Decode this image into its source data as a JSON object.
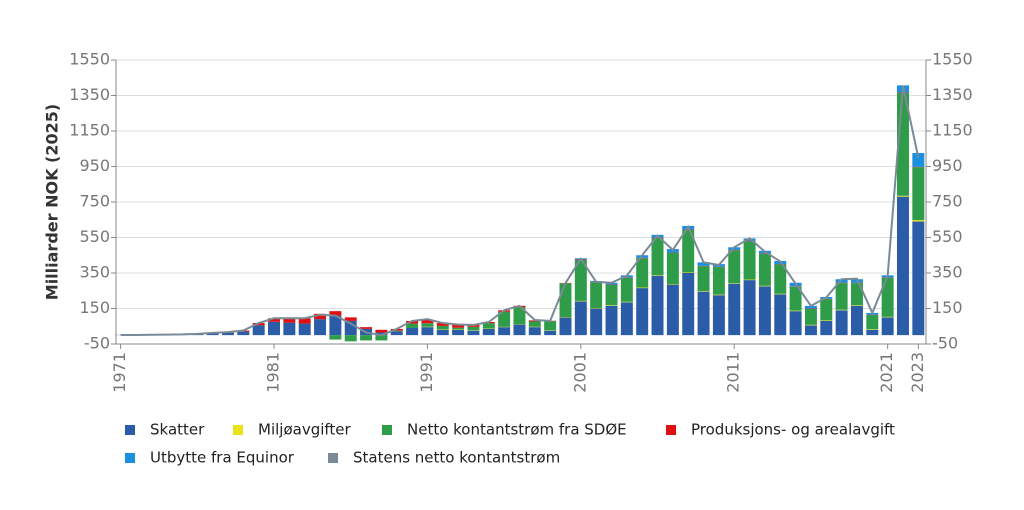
{
  "chart_data": {
    "type": "bar",
    "stacked": true,
    "ylabel": "Milliarder NOK (2025)",
    "x": [
      1971,
      1972,
      1973,
      1974,
      1975,
      1976,
      1977,
      1978,
      1979,
      1980,
      1981,
      1982,
      1983,
      1984,
      1985,
      1986,
      1987,
      1988,
      1989,
      1990,
      1991,
      1992,
      1993,
      1994,
      1995,
      1996,
      1997,
      1998,
      1999,
      2000,
      2001,
      2002,
      2003,
      2004,
      2005,
      2006,
      2007,
      2008,
      2009,
      2010,
      2011,
      2012,
      2013,
      2014,
      2015,
      2016,
      2017,
      2018,
      2019,
      2020,
      2021,
      2022,
      2023
    ],
    "xlim": [
      1970.7,
      2023.5
    ],
    "xticks": [
      1971,
      1981,
      1991,
      2001,
      2011,
      2021,
      2023
    ],
    "ylim": [
      -50,
      1550
    ],
    "yticks": [
      -50,
      150,
      350,
      550,
      750,
      950,
      1150,
      1350,
      1550
    ],
    "y2lim": [
      -50,
      1550
    ],
    "y2ticks": [
      -50,
      150,
      350,
      550,
      750,
      950,
      1150,
      1350,
      1550
    ],
    "grid": true,
    "legend": "bottom",
    "series": [
      {
        "name": "Skatter",
        "color": "#2a5ca8",
        "values": [
          1,
          1,
          1,
          2,
          3,
          5,
          10,
          13,
          20,
          55,
          75,
          70,
          65,
          90,
          110,
          80,
          35,
          15,
          20,
          40,
          45,
          30,
          30,
          25,
          35,
          45,
          60,
          45,
          25,
          100,
          190,
          150,
          165,
          185,
          265,
          335,
          285,
          350,
          245,
          225,
          290,
          310,
          275,
          230,
          135,
          55,
          80,
          140,
          165,
          30,
          100,
          780,
          640
        ]
      },
      {
        "name": "Miljøavgifter",
        "color": "#ece21a",
        "values": [
          0,
          0,
          0,
          0,
          0,
          0,
          0,
          0,
          0,
          0,
          0,
          0,
          0,
          0,
          0,
          0,
          0,
          0,
          0,
          0,
          2,
          2,
          2,
          2,
          2,
          2,
          2,
          2,
          2,
          2,
          3,
          3,
          3,
          3,
          3,
          3,
          3,
          3,
          3,
          3,
          3,
          3,
          3,
          3,
          3,
          3,
          3,
          3,
          3,
          3,
          3,
          5,
          8
        ]
      },
      {
        "name": "Netto kontantstrøm fra SDØE",
        "color": "#2e9c48",
        "values": [
          0,
          0,
          0,
          0,
          0,
          0,
          0,
          0,
          0,
          0,
          0,
          0,
          0,
          0,
          -25,
          -35,
          -30,
          -30,
          5,
          25,
          20,
          20,
          10,
          20,
          30,
          85,
          95,
          30,
          52,
          190,
          230,
          145,
          115,
          135,
          165,
          210,
          175,
          240,
          140,
          155,
          185,
          215,
          180,
          165,
          135,
          90,
          120,
          150,
          125,
          80,
          220,
          580,
          298
        ]
      },
      {
        "name": "Produksjons- og arealavgift",
        "color": "#e01010",
        "values": [
          0.5,
          0.5,
          1,
          1,
          1,
          2,
          3,
          4,
          6,
          13,
          20,
          25,
          30,
          30,
          25,
          20,
          10,
          15,
          10,
          15,
          18,
          16,
          15,
          10,
          7,
          8,
          8,
          6,
          2,
          2,
          4,
          2,
          2,
          2,
          2,
          2,
          2,
          2,
          2,
          2,
          2,
          2,
          2,
          2,
          2,
          2,
          2,
          2,
          2,
          2,
          2,
          2,
          2
        ]
      },
      {
        "name": "Utbytte fra Equinor",
        "color": "#1a90e0",
        "values": [
          0,
          0,
          0,
          0,
          0,
          0,
          0,
          0,
          0,
          0,
          0,
          0,
          0,
          0,
          0,
          0,
          0,
          0,
          0,
          0,
          0,
          0,
          0,
          0,
          0,
          0,
          0,
          0,
          0,
          0,
          6,
          5,
          10,
          12,
          15,
          15,
          20,
          20,
          20,
          15,
          15,
          15,
          15,
          18,
          20,
          15,
          10,
          20,
          20,
          10,
          12,
          40,
          78
        ]
      },
      {
        "name": "Statens netto kontantstrøm",
        "color": "#7a8a96",
        "type": "line",
        "values": [
          1,
          1,
          2,
          3,
          4,
          7,
          13,
          17,
          26,
          68,
          95,
          95,
          95,
          115,
          110,
          65,
          15,
          0,
          35,
          80,
          90,
          68,
          60,
          57,
          74,
          140,
          165,
          85,
          80,
          293,
          430,
          300,
          295,
          335,
          450,
          560,
          480,
          610,
          410,
          395,
          495,
          545,
          470,
          415,
          290,
          165,
          212,
          315,
          318,
          125,
          335,
          1405,
          1000
        ]
      }
    ]
  }
}
